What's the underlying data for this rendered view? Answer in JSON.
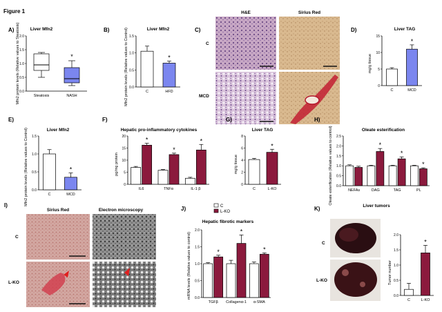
{
  "figure_title": "Figure 1",
  "colors": {
    "control": "#ffffff",
    "mfn2_blue": "#7b86ef",
    "lko_maroon": "#8b1a3d",
    "axis": "#000000"
  },
  "panels": {
    "A": {
      "letter": "A)",
      "title": "Liver Mfn2",
      "ylabel": "Mfn2 protein levels (Relative values to Steatosis)"
    },
    "B": {
      "letter": "B)",
      "title": "Liver Mfn2",
      "ylabel": "Mfn2 protein levels (Relative values to Control)"
    },
    "C": {
      "letter": "C)",
      "col1": "H&E",
      "col2": "Sirius Red",
      "row1": "C",
      "row2": "MCD"
    },
    "D": {
      "letter": "D)",
      "title": "Liver TAG",
      "ylabel": "mg/g tissue"
    },
    "E": {
      "letter": "E)",
      "title": "Liver Mfn2",
      "ylabel": "Mfn2 protein levels (Relative values to Control)"
    },
    "F": {
      "letter": "F)",
      "title": "Hepatic pro-inflammatory cytokines",
      "ylabel": "pg/mg protein"
    },
    "G": {
      "letter": "G)",
      "title": "Liver TAG",
      "ylabel": "mg/g tissue"
    },
    "H": {
      "letter": "H)",
      "title": "Oleate esterification",
      "ylabel": "Oleate esterification (Relative values to control)"
    },
    "I": {
      "letter": "I)",
      "col1": "Sirius Red",
      "col2": "Electron microscopy",
      "row1": "C",
      "row2": "L-KO"
    },
    "J": {
      "letter": "J)",
      "title": "Hepatic fibrotic markers",
      "ylabel": "mRNA levels (Relative values to control)"
    },
    "K": {
      "letter": "K)",
      "title": "Liver tumors",
      "ylabel": "Tumor number",
      "row1": "C",
      "row2": "L-KO"
    }
  },
  "legend": {
    "c": "C",
    "lko": "L-KO"
  },
  "star": "*",
  "chart_data": [
    {
      "panel": "A",
      "type": "box",
      "categories": [
        "Steatosis",
        "NASH"
      ],
      "ylim": [
        0,
        2
      ],
      "yticks": [
        "0.0",
        "0.5",
        "1.0",
        "1.5",
        "2.0"
      ],
      "boxes": [
        {
          "min": 0.5,
          "q1": 0.75,
          "median": 0.95,
          "q3": 1.35,
          "max": 1.4
        },
        {
          "min": 0.2,
          "q1": 0.3,
          "median": 0.45,
          "q3": 0.85,
          "max": 1.1
        }
      ],
      "significant": [
        false,
        true
      ]
    },
    {
      "panel": "B",
      "type": "bar",
      "categories": [
        "C",
        "HFD"
      ],
      "values": [
        1.05,
        0.7
      ],
      "errors": [
        0.15,
        0.06
      ],
      "ylim": [
        0,
        1.5
      ],
      "yticks": [
        "0.0",
        "0.5",
        "1.0",
        "1.5"
      ],
      "significant": [
        false,
        true
      ]
    },
    {
      "panel": "D",
      "type": "bar",
      "categories": [
        "C",
        "MCD"
      ],
      "values": [
        5,
        11
      ],
      "errors": [
        0.4,
        1.3
      ],
      "ylim": [
        0,
        15
      ],
      "yticks": [
        "0",
        "5",
        "10",
        "15"
      ],
      "significant": [
        false,
        true
      ]
    },
    {
      "panel": "E",
      "type": "bar",
      "categories": [
        "C",
        "MCD"
      ],
      "values": [
        1.0,
        0.35
      ],
      "errors": [
        0.12,
        0.12
      ],
      "ylim": [
        0,
        1.5
      ],
      "yticks": [
        "0.0",
        "0.5",
        "1.0",
        "1.5"
      ],
      "significant": [
        false,
        true
      ]
    },
    {
      "panel": "F",
      "type": "bar",
      "categories": [
        "IL6",
        "TNFα",
        "IL-1 β"
      ],
      "ylim": [
        0,
        20
      ],
      "yticks": [
        "0",
        "5",
        "10",
        "15",
        "20"
      ],
      "series": [
        {
          "name": "C",
          "values": [
            7,
            5.8,
            2.5
          ],
          "errors": [
            0.4,
            0.3,
            0.4
          ]
        },
        {
          "name": "L-KO",
          "values": [
            16.2,
            12.3,
            14.2
          ],
          "errors": [
            0.8,
            0.6,
            2.3
          ]
        }
      ],
      "significant": [
        true,
        true,
        true
      ]
    },
    {
      "panel": "G",
      "type": "bar",
      "categories": [
        "C",
        "L-KO"
      ],
      "values": [
        4.1,
        5.3
      ],
      "errors": [
        0.2,
        0.5
      ],
      "ylim": [
        0,
        8
      ],
      "yticks": [
        "0",
        "2",
        "4",
        "6",
        "8"
      ],
      "significant": [
        false,
        true
      ]
    },
    {
      "panel": "H",
      "type": "bar",
      "categories": [
        "NEFAs",
        "DAG",
        "TAG",
        "PL"
      ],
      "ylim": [
        0,
        2.5
      ],
      "yticks": [
        "0.0",
        "0.5",
        "1.0",
        "1.5",
        "2.0",
        "2.5"
      ],
      "series": [
        {
          "name": "C",
          "values": [
            1.0,
            1.0,
            1.0,
            1.0
          ],
          "errors": [
            0.05,
            0.03,
            0.03,
            0.03
          ]
        },
        {
          "name": "L-KO",
          "values": [
            0.92,
            1.72,
            1.35,
            0.85
          ],
          "errors": [
            0.06,
            0.15,
            0.1,
            0.05
          ]
        }
      ],
      "significant": [
        false,
        true,
        true,
        true
      ]
    },
    {
      "panel": "J",
      "type": "bar",
      "categories": [
        "TGFβ",
        "Collagenα-1",
        "α-SMA"
      ],
      "ylim": [
        0,
        2.0
      ],
      "yticks": [
        "0.0",
        "0.5",
        "1.0",
        "1.5",
        "2.0"
      ],
      "series": [
        {
          "name": "C",
          "values": [
            1.0,
            1.0,
            1.0
          ],
          "errors": [
            0.03,
            0.1,
            0.05
          ]
        },
        {
          "name": "L-KO",
          "values": [
            1.2,
            1.6,
            1.28
          ],
          "errors": [
            0.05,
            0.25,
            0.04
          ]
        }
      ],
      "significant": [
        true,
        true,
        true
      ]
    },
    {
      "panel": "K",
      "type": "bar",
      "categories": [
        "C",
        "L-KO"
      ],
      "values": [
        0.2,
        1.4
      ],
      "errors": [
        0.2,
        0.25
      ],
      "ylim": [
        0,
        2.0
      ],
      "yticks": [
        "0.0",
        "0.5",
        "1.0",
        "1.5",
        "2.0"
      ],
      "significant": [
        false,
        true
      ]
    }
  ]
}
